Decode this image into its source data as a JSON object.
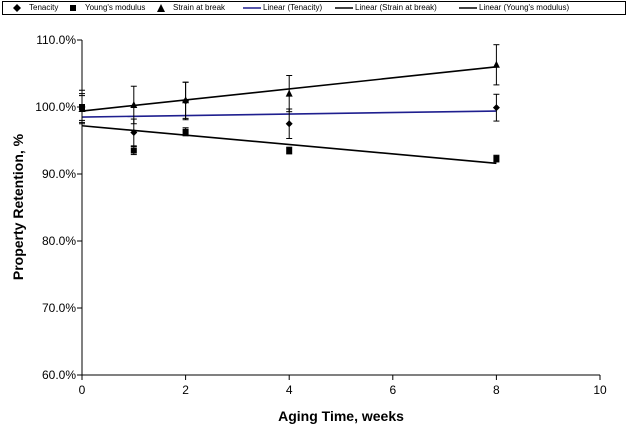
{
  "chart_data": {
    "type": "scatter",
    "xlabel": "Aging Time, weeks",
    "ylabel": "Property Retention, %",
    "xlim": [
      0,
      10
    ],
    "ylim": [
      0.6,
      1.1
    ],
    "x_ticks": [
      "0",
      "2",
      "4",
      "6",
      "8",
      "10"
    ],
    "y_ticks": [
      "60.0%",
      "70.0%",
      "80.0%",
      "90.0%",
      "100.0%",
      "110.0%"
    ],
    "grid": false,
    "legend_position": "top",
    "series": [
      {
        "name": "Tenacity",
        "marker": "diamond",
        "x": [
          0,
          1,
          2,
          4,
          8
        ],
        "y": [
          1.0,
          0.962,
          1.009,
          0.975,
          0.999
        ],
        "err": [
          0.025,
          0.02,
          0.028,
          0.022,
          0.02
        ]
      },
      {
        "name": "Young's modulus",
        "marker": "square",
        "x": [
          0,
          1,
          2,
          4,
          8
        ],
        "y": [
          1.0,
          0.935,
          0.963,
          0.935,
          0.923
        ],
        "err": [
          0.02,
          0.006,
          0.006,
          0.005,
          0.005
        ]
      },
      {
        "name": "Strain at break",
        "marker": "triangle",
        "x": [
          0,
          1,
          2,
          4,
          8
        ],
        "y": [
          0.997,
          1.003,
          1.01,
          1.02,
          1.063
        ],
        "err": [
          0.02,
          0.028,
          0.027,
          0.027,
          0.03
        ]
      }
    ],
    "trendlines": [
      {
        "name": "Linear (Tenacity)",
        "color": "#1f1f8f",
        "x": [
          0,
          8
        ],
        "y": [
          0.985,
          0.994
        ]
      },
      {
        "name": "Linear (Strain at break)",
        "color": "#000000",
        "x": [
          0,
          8
        ],
        "y": [
          0.994,
          1.06
        ]
      },
      {
        "name": "Linear (Young's modulus)",
        "color": "#000000",
        "x": [
          0,
          8
        ],
        "y": [
          0.972,
          0.916
        ]
      }
    ]
  },
  "legend": {
    "items": [
      {
        "label": "Tenacity",
        "symbol": "diamond"
      },
      {
        "label": "Young's modulus",
        "symbol": "square"
      },
      {
        "label": "Strain at break",
        "symbol": "triangle"
      },
      {
        "label": "Linear (Tenacity)",
        "symbol": "line-blue"
      },
      {
        "label": "Linear (Strain at break)",
        "symbol": "line-black"
      },
      {
        "label": "Linear (Young's modulus)",
        "symbol": "line-black"
      }
    ]
  }
}
